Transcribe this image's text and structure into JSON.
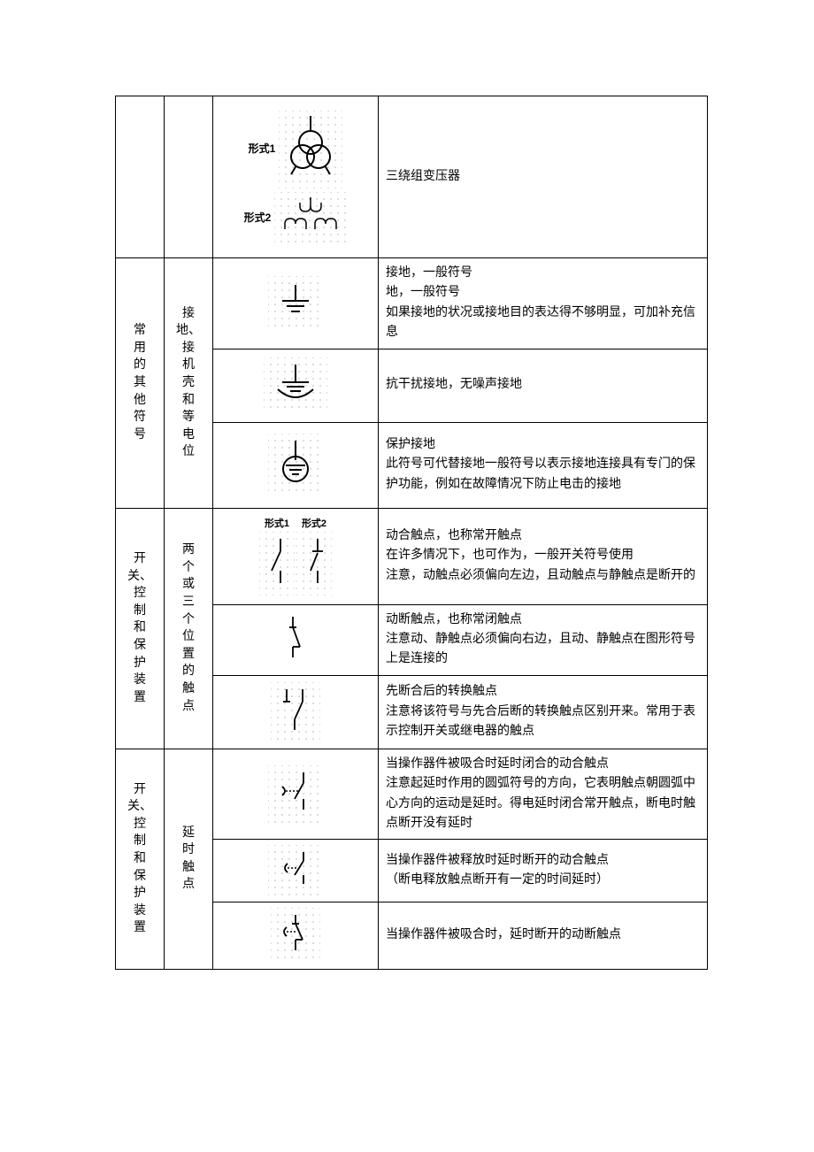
{
  "labels": {
    "form1": "形式1",
    "form2": "形式2"
  },
  "rows": [
    {
      "cat": "",
      "sub": "",
      "desc": "三绕组变压器"
    },
    {
      "cat": "常用的其他符号",
      "sub": "接地、接机壳和等电位",
      "items": [
        {
          "desc": "接地，一般符号\n地，一般符号\n如果接地的状况或接地目的表达得不够明显，可加补充信息"
        },
        {
          "desc": "抗干扰接地，无噪声接地"
        },
        {
          "desc": "保护接地\n此符号可代替接地一般符号以表示接地连接具有专门的保护功能，例如在故障情况下防止电击的接地"
        }
      ]
    },
    {
      "cat": "开关、控制和保护装置",
      "sub": "两个或三个位置的触点",
      "items": [
        {
          "desc": "动合触点，也称常开触点\n在许多情况下，也可作为，一般开关符号使用\n注意，动触点必须偏向左边，且动触点与静触点是断开的"
        },
        {
          "desc": "动断触点，也称常闭触点\n注意动、静触点必须偏向右边，且动、静触点在图形符号上是连接的"
        },
        {
          "desc": "先断合后的转换触点\n注意将该符号与先合后断的转换触点区别开来。常用于表示控制开关或继电器的触点"
        }
      ]
    },
    {
      "cat": "开关、控制和保护装置",
      "sub": "延时触点",
      "items": [
        {
          "desc": "当操作器件被吸合时延时闭合的动合触点\n注意起延时作用的圆弧符号的方向，它表明触点朝圆弧中心方向的运动是延时。得电延时闭合常开触点，断电时触点断开没有延时"
        },
        {
          "desc": "当操作器件被释放时延时断开的动合触点\n（断电释放触点断开有一定的时间延时）"
        },
        {
          "desc": "当操作器件被吸合时，延时断开的动断触点"
        }
      ]
    }
  ]
}
